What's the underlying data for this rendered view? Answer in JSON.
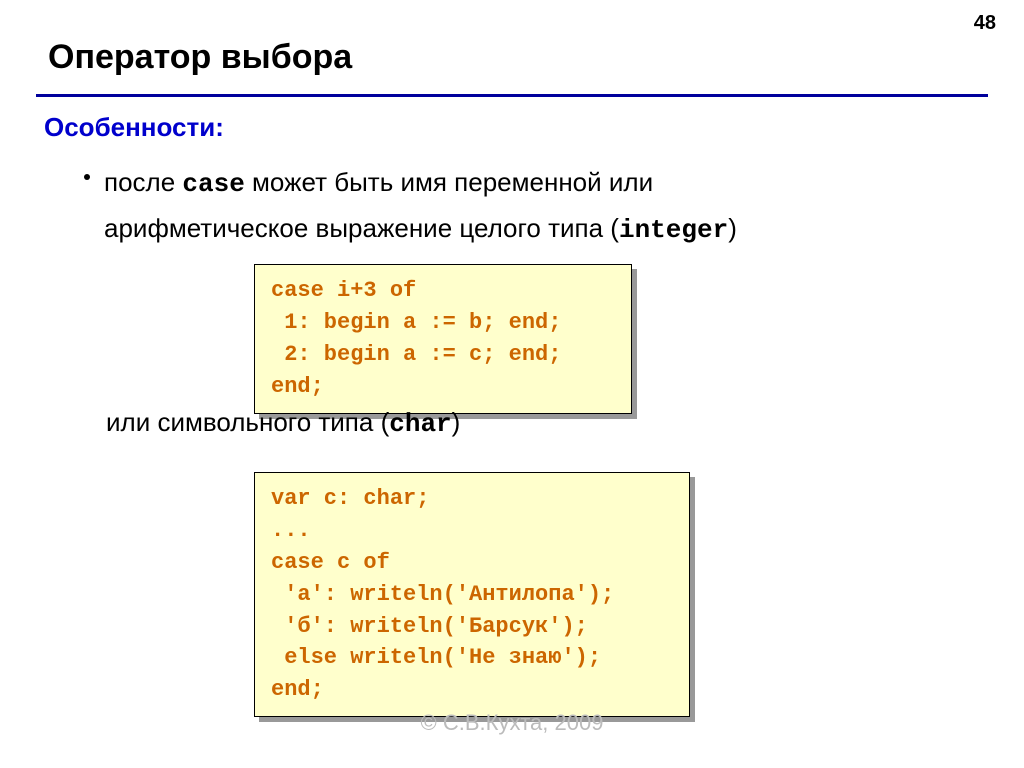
{
  "page_number": "48",
  "title": "Оператор выбора",
  "subtitle": "Особенности:",
  "bullet": {
    "line1_prefix": "после ",
    "kw_case": "case",
    "line1_suffix": " может быть имя переменной или",
    "line2_prefix": "арифметическое выражение целого типа (",
    "kw_integer": "integer",
    "line2_suffix": ")"
  },
  "code1": {
    "text": "case i+3 of\n 1: begin a := b; end;\n 2: begin a := c; end;\nend;",
    "bg_color": "#ffffcc",
    "text_color": "#cc6600",
    "border_color": "#000000",
    "shadow_color": "#999999",
    "font_family": "Courier New",
    "font_size_pt": 16
  },
  "mid_text": {
    "prefix": "или символьного типа (",
    "kw_char": "char",
    "suffix": ")"
  },
  "code2": {
    "text": "var c: char;\n...\ncase c of\n 'а': writeln('Антилопа');\n 'б': writeln('Барсук');\n else writeln('Не знаю');\nend;",
    "bg_color": "#ffffcc",
    "text_color": "#cc6600",
    "border_color": "#000000",
    "shadow_color": "#999999",
    "font_family": "Courier New",
    "font_size_pt": 16
  },
  "footer": "© С.В.Кухта, 2009",
  "colors": {
    "hr": "#00009c",
    "subtitle": "#0000cc",
    "body_text": "#000000",
    "background": "#ffffff",
    "footer": "#bbbbbb"
  },
  "fonts": {
    "body_family": "Arial",
    "mono_family": "Courier New",
    "title_size_pt": 26,
    "subtitle_size_pt": 20,
    "body_size_pt": 20
  }
}
